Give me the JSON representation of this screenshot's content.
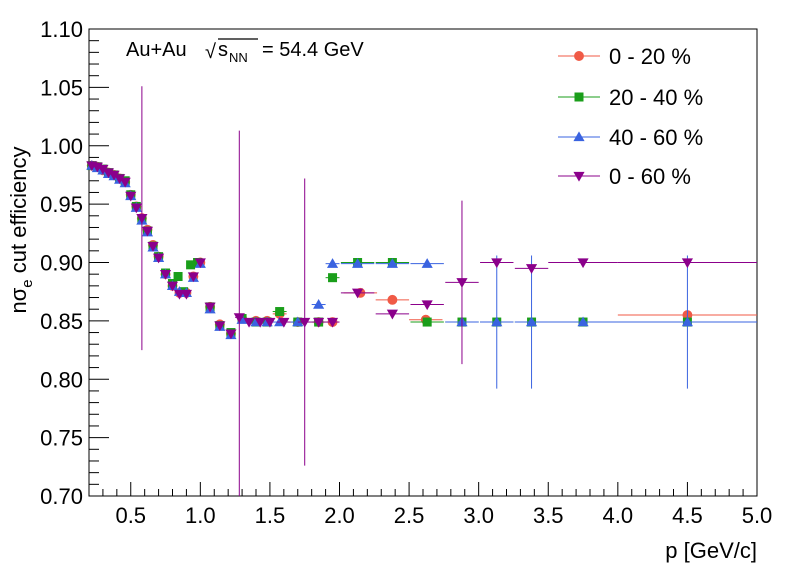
{
  "chart_data": {
    "type": "scatter",
    "annotation": {
      "system": "Au+Au",
      "sqrt": "√",
      "s": "s",
      "nn": "NN",
      "energy": "= 54.4 GeV"
    },
    "xlabel": "p [GeV/c]",
    "ylabel": {
      "prefix": "nσ",
      "subscript": "e",
      "suffix": " cut efficiency"
    },
    "xlim": [
      0.2,
      5.0
    ],
    "ylim": [
      0.7,
      1.1
    ],
    "x_ticks": [
      {
        "v": 0.5,
        "label": "0.5"
      },
      {
        "v": 1.0,
        "label": "1.0"
      },
      {
        "v": 1.5,
        "label": "1.5"
      },
      {
        "v": 2.0,
        "label": "2.0"
      },
      {
        "v": 2.5,
        "label": "2.5"
      },
      {
        "v": 3.0,
        "label": "3.0"
      },
      {
        "v": 3.5,
        "label": "3.5"
      },
      {
        "v": 4.0,
        "label": "4.0"
      },
      {
        "v": 4.5,
        "label": "4.5"
      },
      {
        "v": 5.0,
        "label": "5.0"
      }
    ],
    "y_ticks": [
      {
        "v": 0.7,
        "label": "0.70"
      },
      {
        "v": 0.75,
        "label": "0.75"
      },
      {
        "v": 0.8,
        "label": "0.80"
      },
      {
        "v": 0.85,
        "label": "0.85"
      },
      {
        "v": 0.9,
        "label": "0.90"
      },
      {
        "v": 0.95,
        "label": "0.95"
      },
      {
        "v": 1.0,
        "label": "1.00"
      },
      {
        "v": 1.05,
        "label": "1.05"
      },
      {
        "v": 1.1,
        "label": "1.10"
      }
    ],
    "legend_position": "top-right",
    "series": [
      {
        "name": "0 - 20 %",
        "color": "#f05a46",
        "marker": "circle",
        "points": [
          [
            0.22,
            0.983,
            0,
            0.005
          ],
          [
            0.26,
            0.982,
            0,
            0.005
          ],
          [
            0.3,
            0.979,
            0,
            0.005
          ],
          [
            0.34,
            0.977,
            0,
            0.005
          ],
          [
            0.38,
            0.975,
            0,
            0.005
          ],
          [
            0.42,
            0.972,
            0,
            0.005
          ],
          [
            0.46,
            0.969,
            0,
            0.005
          ],
          [
            0.5,
            0.958,
            0,
            0.005
          ],
          [
            0.54,
            0.948,
            0,
            0.005
          ],
          [
            0.58,
            0.938,
            0,
            0.005
          ],
          [
            0.62,
            0.928,
            0,
            0.005
          ],
          [
            0.66,
            0.915,
            0,
            0.005
          ],
          [
            0.7,
            0.905,
            0,
            0.005
          ],
          [
            0.75,
            0.89,
            0,
            0.005
          ],
          [
            0.8,
            0.88,
            0,
            0.005
          ],
          [
            0.85,
            0.874,
            0,
            0.005
          ],
          [
            0.9,
            0.874,
            0,
            0.005
          ],
          [
            0.95,
            0.888,
            0,
            0.005
          ],
          [
            1.0,
            0.9,
            0,
            0.005
          ],
          [
            1.07,
            0.862,
            0,
            0.005
          ],
          [
            1.14,
            0.847,
            0,
            0.005
          ],
          [
            1.22,
            0.839,
            0,
            0.005
          ],
          [
            1.3,
            0.852,
            0,
            0.005
          ],
          [
            1.4,
            0.85,
            0,
            0.005
          ],
          [
            1.48,
            0.85,
            0,
            0.005
          ],
          [
            1.57,
            0.856,
            0.05,
            0.005
          ],
          [
            1.7,
            0.849,
            0.05,
            0.005
          ],
          [
            1.85,
            0.849,
            0.05,
            0.005
          ],
          [
            1.95,
            0.849,
            0.05,
            0.005
          ],
          [
            2.15,
            0.874,
            0.12,
            0.005
          ],
          [
            2.38,
            0.868,
            0.12,
            0.005
          ],
          [
            2.62,
            0.851,
            0.12,
            0.005
          ],
          [
            4.5,
            0.855,
            0.5,
            0.005
          ]
        ]
      },
      {
        "name": "20 - 40 %",
        "color": "#1a9e1a",
        "marker": "square",
        "points": [
          [
            0.22,
            0.983,
            0,
            0.005
          ],
          [
            0.26,
            0.982,
            0,
            0.005
          ],
          [
            0.3,
            0.98,
            0,
            0.005
          ],
          [
            0.34,
            0.977,
            0,
            0.005
          ],
          [
            0.38,
            0.975,
            0,
            0.005
          ],
          [
            0.42,
            0.972,
            0,
            0.005
          ],
          [
            0.46,
            0.97,
            0,
            0.005
          ],
          [
            0.5,
            0.958,
            0,
            0.005
          ],
          [
            0.54,
            0.948,
            0,
            0.005
          ],
          [
            0.58,
            0.937,
            0,
            0.005
          ],
          [
            0.62,
            0.927,
            0,
            0.005
          ],
          [
            0.66,
            0.914,
            0,
            0.005
          ],
          [
            0.7,
            0.905,
            0,
            0.005
          ],
          [
            0.75,
            0.891,
            0,
            0.005
          ],
          [
            0.8,
            0.882,
            0,
            0.005
          ],
          [
            0.84,
            0.888,
            0,
            0.005
          ],
          [
            0.88,
            0.875,
            0,
            0.005
          ],
          [
            0.93,
            0.898,
            0,
            0.005
          ],
          [
            0.98,
            0.9,
            0,
            0.005
          ],
          [
            1.07,
            0.862,
            0,
            0.005
          ],
          [
            1.14,
            0.846,
            0,
            0.005
          ],
          [
            1.22,
            0.84,
            0,
            0.005
          ],
          [
            1.3,
            0.852,
            0,
            0.005
          ],
          [
            1.4,
            0.849,
            0,
            0.005
          ],
          [
            1.48,
            0.849,
            0,
            0.005
          ],
          [
            1.57,
            0.858,
            0.05,
            0.005
          ],
          [
            1.7,
            0.849,
            0.05,
            0.005
          ],
          [
            1.85,
            0.849,
            0.05,
            0.005
          ],
          [
            1.95,
            0.887,
            0.05,
            0.005
          ],
          [
            2.13,
            0.9,
            0.12,
            0.005
          ],
          [
            2.38,
            0.9,
            0.12,
            0.005
          ],
          [
            2.63,
            0.849,
            0.12,
            0.005
          ],
          [
            2.88,
            0.849,
            0.12,
            0.005
          ],
          [
            3.13,
            0.849,
            0.12,
            0.005
          ],
          [
            3.38,
            0.849,
            0.12,
            0.005
          ],
          [
            3.75,
            0.849,
            0.25,
            0.005
          ],
          [
            4.5,
            0.849,
            0.5,
            0.005
          ]
        ]
      },
      {
        "name": "40 - 60 %",
        "color": "#3a63e0",
        "marker": "triangle-up",
        "points": [
          [
            0.22,
            0.983,
            0,
            0.005
          ],
          [
            0.26,
            0.981,
            0,
            0.005
          ],
          [
            0.3,
            0.979,
            0,
            0.005
          ],
          [
            0.34,
            0.976,
            0,
            0.005
          ],
          [
            0.38,
            0.974,
            0,
            0.005
          ],
          [
            0.42,
            0.971,
            0,
            0.005
          ],
          [
            0.46,
            0.968,
            0,
            0.005
          ],
          [
            0.5,
            0.957,
            0,
            0.005
          ],
          [
            0.54,
            0.947,
            0,
            0.005
          ],
          [
            0.58,
            0.936,
            0,
            0.005
          ],
          [
            0.62,
            0.926,
            0,
            0.005
          ],
          [
            0.66,
            0.913,
            0,
            0.005
          ],
          [
            0.7,
            0.904,
            0,
            0.005
          ],
          [
            0.75,
            0.89,
            0,
            0.005
          ],
          [
            0.8,
            0.88,
            0,
            0.005
          ],
          [
            0.85,
            0.875,
            0,
            0.005
          ],
          [
            0.9,
            0.874,
            0,
            0.005
          ],
          [
            0.95,
            0.887,
            0,
            0.005
          ],
          [
            1.0,
            0.899,
            0,
            0.005
          ],
          [
            1.07,
            0.86,
            0,
            0.005
          ],
          [
            1.14,
            0.845,
            0,
            0.005
          ],
          [
            1.22,
            0.838,
            0,
            0.005
          ],
          [
            1.3,
            0.851,
            0,
            0.005
          ],
          [
            1.4,
            0.849,
            0,
            0.005
          ],
          [
            1.48,
            0.849,
            0,
            0.005
          ],
          [
            1.57,
            0.849,
            0.05,
            0.005
          ],
          [
            1.7,
            0.849,
            0.05,
            0.005
          ],
          [
            1.85,
            0.864,
            0.05,
            0.005
          ],
          [
            1.95,
            0.899,
            0.05,
            0.005
          ],
          [
            2.13,
            0.899,
            0.12,
            0.005
          ],
          [
            2.38,
            0.899,
            0.12,
            0.005
          ],
          [
            2.63,
            0.899,
            0.12,
            0.005
          ],
          [
            2.88,
            0.849,
            0.12,
            0.005
          ],
          [
            3.13,
            0.849,
            0.12,
            0.057
          ],
          [
            3.38,
            0.849,
            0.12,
            0.057
          ],
          [
            3.75,
            0.849,
            0.25,
            0.005
          ],
          [
            4.5,
            0.849,
            0.5,
            0.057
          ]
        ]
      },
      {
        "name": "0 - 60 %",
        "color": "#8b008b",
        "marker": "triangle-down",
        "points": [
          [
            0.22,
            0.983,
            0,
            0.005
          ],
          [
            0.26,
            0.982,
            0,
            0.005
          ],
          [
            0.3,
            0.98,
            0,
            0.005
          ],
          [
            0.34,
            0.977,
            0,
            0.005
          ],
          [
            0.38,
            0.975,
            0,
            0.005
          ],
          [
            0.42,
            0.972,
            0,
            0.005
          ],
          [
            0.46,
            0.969,
            0,
            0.005
          ],
          [
            0.5,
            0.957,
            0,
            0.005
          ],
          [
            0.54,
            0.947,
            0,
            0.005
          ],
          [
            0.58,
            0.938,
            0.02,
            0.113
          ],
          [
            0.62,
            0.927,
            0,
            0.005
          ],
          [
            0.66,
            0.914,
            0,
            0.005
          ],
          [
            0.7,
            0.904,
            0,
            0.005
          ],
          [
            0.75,
            0.89,
            0,
            0.005
          ],
          [
            0.8,
            0.88,
            0,
            0.005
          ],
          [
            0.85,
            0.873,
            0,
            0.005
          ],
          [
            0.9,
            0.873,
            0,
            0.005
          ],
          [
            0.95,
            0.888,
            0,
            0.005
          ],
          [
            1.0,
            0.9,
            0,
            0.005
          ],
          [
            1.07,
            0.862,
            0,
            0.005
          ],
          [
            1.14,
            0.846,
            0,
            0.005
          ],
          [
            1.22,
            0.839,
            0,
            0.005
          ],
          [
            1.28,
            0.853,
            0.03,
            0.16
          ],
          [
            1.35,
            0.849,
            0,
            0.005
          ],
          [
            1.43,
            0.849,
            0,
            0.005
          ],
          [
            1.5,
            0.849,
            0,
            0.005
          ],
          [
            1.6,
            0.849,
            0.05,
            0.005
          ],
          [
            1.75,
            0.849,
            0.05,
            0.123
          ],
          [
            1.85,
            0.849,
            0.05,
            0.005
          ],
          [
            1.95,
            0.849,
            0.05,
            0.005
          ],
          [
            2.13,
            0.874,
            0.12,
            0.005
          ],
          [
            2.38,
            0.856,
            0.12,
            0.005
          ],
          [
            2.63,
            0.864,
            0.12,
            0.005
          ],
          [
            2.88,
            0.883,
            0.12,
            0.07
          ],
          [
            3.13,
            0.9,
            0.12,
            0.005
          ],
          [
            3.38,
            0.895,
            0.12,
            0.005
          ],
          [
            3.75,
            0.9,
            0.25,
            0.005
          ],
          [
            4.5,
            0.9,
            0.5,
            0.005
          ]
        ]
      }
    ]
  }
}
